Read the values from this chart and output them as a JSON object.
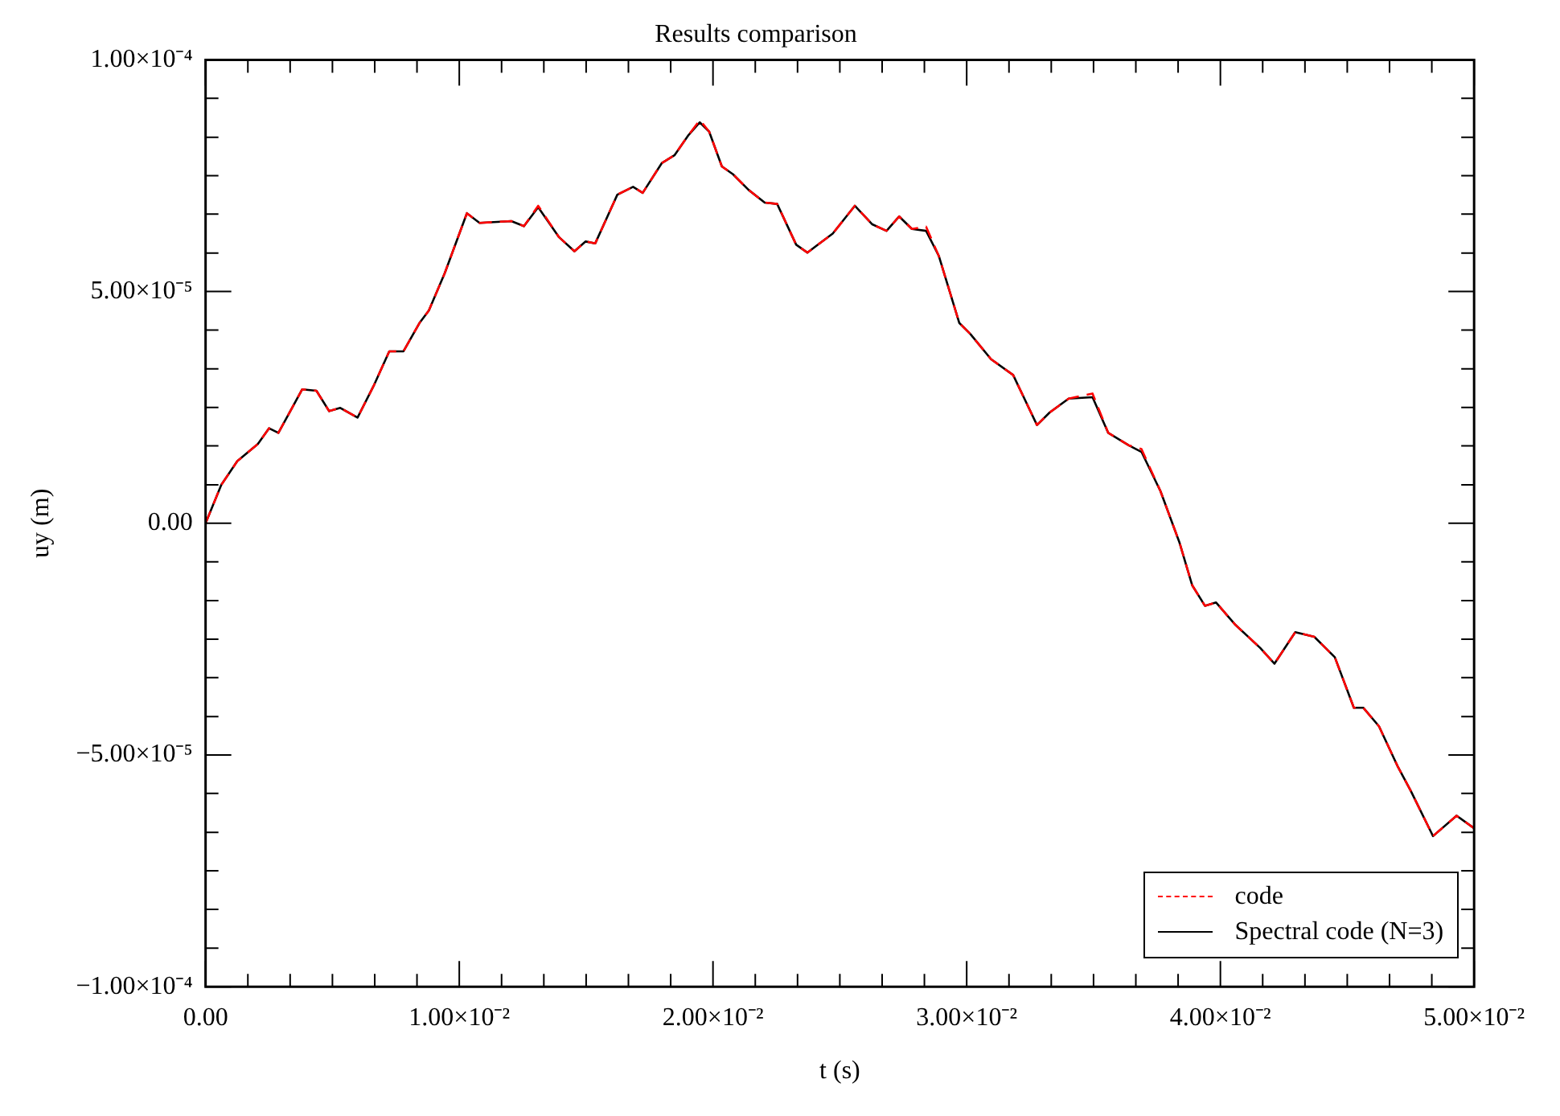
{
  "chart_data": {
    "type": "line",
    "title": "Results comparison",
    "xlabel": "t (s)",
    "ylabel": "uy (m)",
    "xlim": [
      0,
      0.05
    ],
    "ylim": [
      -0.0001,
      0.0001
    ],
    "xticks": [
      {
        "value": 0,
        "label": "0.00"
      },
      {
        "value": 0.001667,
        "label": null
      },
      {
        "value": 0.003333,
        "label": null
      },
      {
        "value": 0.005,
        "label": null
      },
      {
        "value": 0.006667,
        "label": null
      },
      {
        "value": 0.008333,
        "label": null
      },
      {
        "value": 0.01,
        "label": "1.00×10⁻²"
      },
      {
        "value": 0.011667,
        "label": null
      },
      {
        "value": 0.013333,
        "label": null
      },
      {
        "value": 0.015,
        "label": null
      },
      {
        "value": 0.016667,
        "label": null
      },
      {
        "value": 0.018333,
        "label": null
      },
      {
        "value": 0.02,
        "label": "2.00×10⁻²"
      },
      {
        "value": 0.021667,
        "label": null
      },
      {
        "value": 0.023333,
        "label": null
      },
      {
        "value": 0.025,
        "label": null
      },
      {
        "value": 0.026667,
        "label": null
      },
      {
        "value": 0.028333,
        "label": null
      },
      {
        "value": 0.03,
        "label": "3.00×10⁻²"
      },
      {
        "value": 0.031667,
        "label": null
      },
      {
        "value": 0.033333,
        "label": null
      },
      {
        "value": 0.035,
        "label": null
      },
      {
        "value": 0.036667,
        "label": null
      },
      {
        "value": 0.038333,
        "label": null
      },
      {
        "value": 0.04,
        "label": "4.00×10⁻²"
      },
      {
        "value": 0.041667,
        "label": null
      },
      {
        "value": 0.043333,
        "label": null
      },
      {
        "value": 0.045,
        "label": null
      },
      {
        "value": 0.046667,
        "label": null
      },
      {
        "value": 0.048333,
        "label": null
      },
      {
        "value": 0.05,
        "label": "5.00×10⁻²"
      }
    ],
    "yticks": [
      {
        "value": -0.0001,
        "label": "−1.00×10⁻⁴"
      },
      {
        "value": -9.17e-05,
        "label": null
      },
      {
        "value": -8.33e-05,
        "label": null
      },
      {
        "value": -7.5e-05,
        "label": null
      },
      {
        "value": -6.67e-05,
        "label": null
      },
      {
        "value": -5.83e-05,
        "label": null
      },
      {
        "value": -5e-05,
        "label": "−5.00×10⁻⁵"
      },
      {
        "value": -4.17e-05,
        "label": null
      },
      {
        "value": -3.33e-05,
        "label": null
      },
      {
        "value": -2.5e-05,
        "label": null
      },
      {
        "value": -1.67e-05,
        "label": null
      },
      {
        "value": -8.3e-06,
        "label": null
      },
      {
        "value": 0,
        "label": "0.00"
      },
      {
        "value": 8.3e-06,
        "label": null
      },
      {
        "value": 1.67e-05,
        "label": null
      },
      {
        "value": 2.5e-05,
        "label": null
      },
      {
        "value": 3.33e-05,
        "label": null
      },
      {
        "value": 4.17e-05,
        "label": null
      },
      {
        "value": 5e-05,
        "label": "5.00×10⁻⁵"
      },
      {
        "value": 5.83e-05,
        "label": null
      },
      {
        "value": 6.67e-05,
        "label": null
      },
      {
        "value": 7.5e-05,
        "label": null
      },
      {
        "value": 8.33e-05,
        "label": null
      },
      {
        "value": 9.17e-05,
        "label": null
      },
      {
        "value": 0.0001,
        "label": "1.00×10⁻⁴"
      }
    ],
    "legend": "bottom right",
    "marker": "none",
    "x": [
      0,
      0.00062,
      0.00125,
      0.00206,
      0.0025,
      0.00287,
      0.00381,
      0.00437,
      0.00487,
      0.00531,
      0.00599,
      0.00662,
      0.00724,
      0.0078,
      0.00843,
      0.0088,
      0.00943,
      0.0103,
      0.0108,
      0.01205,
      0.01255,
      0.01311,
      0.01392,
      0.01454,
      0.01498,
      0.01536,
      0.01623,
      0.01685,
      0.01723,
      0.01798,
      0.01848,
      0.01904,
      0.01948,
      0.01985,
      0.02035,
      0.02079,
      0.02141,
      0.02204,
      0.02253,
      0.02328,
      0.02372,
      0.02472,
      0.02559,
      0.02628,
      0.02684,
      0.02734,
      0.02784,
      0.0284,
      0.0289,
      0.02971,
      0.03015,
      0.03096,
      0.03183,
      0.03277,
      0.03327,
      0.03402,
      0.03496,
      0.03558,
      0.03639,
      0.03689,
      0.03764,
      0.03839,
      0.03889,
      0.03939,
      0.03983,
      0.04057,
      0.04157,
      0.04213,
      0.04295,
      0.0437,
      0.04451,
      0.04526,
      0.04563,
      0.04625,
      0.047,
      0.0475,
      0.04838,
      0.04931,
      0.05
    ],
    "series": [
      {
        "name": "code",
        "color": "#ff0000",
        "line_style": "dashed",
        "values": [
          0,
          8.3e-06,
          1.34e-05,
          1.71e-05,
          2.05e-05,
          1.95e-05,
          2.89e-05,
          2.86e-05,
          2.42e-05,
          2.49e-05,
          2.28e-05,
          2.96e-05,
          3.71e-05,
          3.71e-05,
          4.32e-05,
          4.59e-05,
          5.4e-05,
          6.69e-05,
          6.48e-05,
          6.52e-05,
          6.41e-05,
          6.85e-05,
          6.18e-05,
          5.87e-05,
          6.08e-05,
          6.04e-05,
          7.09e-05,
          7.26e-05,
          7.13e-05,
          7.77e-05,
          7.94e-05,
          8.38e-05,
          8.7e-05,
          8.45e-05,
          7.7e-05,
          7.53e-05,
          7.19e-05,
          6.92e-05,
          6.89e-05,
          6.01e-05,
          5.84e-05,
          6.25e-05,
          6.85e-05,
          6.45e-05,
          6.31e-05,
          6.62e-05,
          6.35e-05,
          6.4e-05,
          5.77e-05,
          4.32e-05,
          4.08e-05,
          3.54e-05,
          3.2e-05,
          2.12e-05,
          2.39e-05,
          2.69e-05,
          2.8e-05,
          1.95e-05,
          1.68e-05,
          1.6e-05,
          6.9e-06,
          -4.2e-06,
          -1.34e-05,
          -1.78e-05,
          -1.71e-05,
          -2.18e-05,
          -2.69e-05,
          -3.03e-05,
          -2.35e-05,
          -2.45e-05,
          -2.89e-05,
          -3.98e-05,
          -3.98e-05,
          -4.38e-05,
          -5.26e-05,
          -5.77e-05,
          -6.75e-05,
          -6.31e-05,
          -6.58e-05
        ]
      },
      {
        "name": "Spectral code (N=3)",
        "color": "#000000",
        "line_style": "solid",
        "values": [
          0,
          8.3e-06,
          1.34e-05,
          1.71e-05,
          2.05e-05,
          1.95e-05,
          2.89e-05,
          2.86e-05,
          2.42e-05,
          2.49e-05,
          2.28e-05,
          2.96e-05,
          3.71e-05,
          3.71e-05,
          4.32e-05,
          4.59e-05,
          5.4e-05,
          6.69e-05,
          6.48e-05,
          6.52e-05,
          6.41e-05,
          6.82e-05,
          6.18e-05,
          5.87e-05,
          6.08e-05,
          6.04e-05,
          7.09e-05,
          7.26e-05,
          7.13e-05,
          7.77e-05,
          7.94e-05,
          8.38e-05,
          8.65e-05,
          8.45e-05,
          7.7e-05,
          7.53e-05,
          7.19e-05,
          6.92e-05,
          6.89e-05,
          6.01e-05,
          5.84e-05,
          6.25e-05,
          6.85e-05,
          6.45e-05,
          6.31e-05,
          6.62e-05,
          6.35e-05,
          6.31e-05,
          5.77e-05,
          4.32e-05,
          4.08e-05,
          3.54e-05,
          3.2e-05,
          2.12e-05,
          2.39e-05,
          2.69e-05,
          2.72e-05,
          1.95e-05,
          1.68e-05,
          1.54e-05,
          6.9e-06,
          -4.2e-06,
          -1.34e-05,
          -1.78e-05,
          -1.71e-05,
          -2.18e-05,
          -2.69e-05,
          -3.03e-05,
          -2.35e-05,
          -2.45e-05,
          -2.89e-05,
          -3.98e-05,
          -3.98e-05,
          -4.38e-05,
          -5.26e-05,
          -5.77e-05,
          -6.75e-05,
          -6.31e-05,
          -6.58e-05
        ]
      }
    ]
  }
}
